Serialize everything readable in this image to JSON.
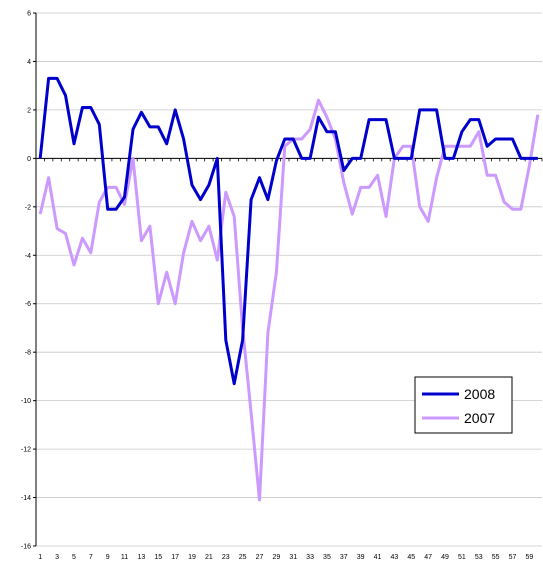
{
  "chart_data": {
    "type": "line",
    "title": "",
    "xlabel": "",
    "ylabel": "",
    "ylim": [
      -16,
      6
    ],
    "y_ticks": [
      6,
      4,
      2,
      0,
      -2,
      -4,
      -6,
      -8,
      -10,
      -12,
      -14,
      -16
    ],
    "x_tick_labels": [
      "1",
      "3",
      "5",
      "7",
      "9",
      "11",
      "13",
      "15",
      "17",
      "19",
      "21",
      "23",
      "25",
      "27",
      "29",
      "31",
      "33",
      "35",
      "37",
      "39",
      "41",
      "43",
      "45",
      "47",
      "49",
      "51",
      "53",
      "55",
      "57",
      "59"
    ],
    "grid": "horizontal",
    "legend_position": "lower-right",
    "series": [
      {
        "name": "2008",
        "color": "#0000CC",
        "values": [
          0,
          3.3,
          3.3,
          2.6,
          0.6,
          2.1,
          2.1,
          1.4,
          -2.1,
          -2.1,
          -1.6,
          1.2,
          1.9,
          1.3,
          1.3,
          0.6,
          2.0,
          0.8,
          -1.1,
          -1.7,
          -1.1,
          0.0,
          -7.5,
          -9.3,
          -7.5,
          -1.7,
          -0.8,
          -1.7,
          -0.1,
          0.8,
          0.8,
          0.0,
          0.0,
          1.7,
          1.1,
          1.1,
          -0.5,
          0.0,
          0.0,
          1.6,
          1.6,
          1.6,
          0.0,
          0.0,
          0.0,
          2.0,
          2.0,
          2.0,
          0.0,
          0.0,
          1.1,
          1.6,
          1.6,
          0.5,
          0.8,
          0.8,
          0.8,
          0.0,
          0.0,
          0.0
        ]
      },
      {
        "name": "2007",
        "color": "#CC99FF",
        "values": [
          -2.3,
          -0.8,
          -2.9,
          -3.1,
          -4.4,
          -3.3,
          -3.9,
          -1.8,
          -1.2,
          -1.2,
          -1.9,
          0.0,
          -3.4,
          -2.8,
          -6.0,
          -4.7,
          -6.0,
          -3.9,
          -2.6,
          -3.4,
          -2.8,
          -4.2,
          -1.4,
          -2.4,
          -7.0,
          -10.5,
          -14.1,
          -7.2,
          -4.7,
          0.5,
          0.8,
          0.8,
          1.2,
          2.4,
          1.7,
          0.8,
          -1.0,
          -2.3,
          -1.2,
          -1.2,
          -0.7,
          -2.4,
          0.0,
          0.5,
          0.5,
          -2.0,
          -2.6,
          -0.8,
          0.5,
          0.5,
          0.5,
          0.5,
          1.1,
          -0.7,
          -0.7,
          -1.8,
          -2.1,
          -2.1,
          -0.3,
          1.8
        ]
      }
    ]
  }
}
